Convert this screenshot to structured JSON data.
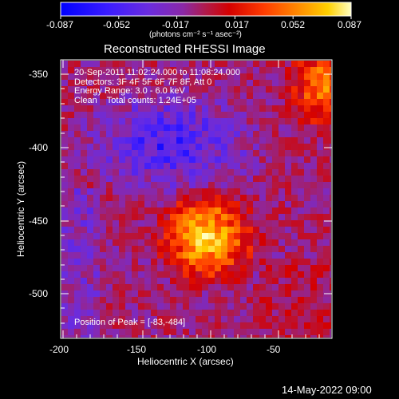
{
  "colorbar": {
    "ticks": [
      "-0.087",
      "-0.052",
      "-0.017",
      "0.017",
      "0.052",
      "0.087"
    ],
    "units": "(photons cm⁻² s⁻¹ asec⁻²)"
  },
  "title": "Reconstructed RHESSI Image",
  "overlay": {
    "line1": "20-Sep-2011 11:02:24.000 to 11:08:24.000",
    "line2": "Detectors: 3F 4F 5F 6F 7F 8F, Att 0",
    "line3": "Energy Range: 3.0 - 6.0 keV",
    "line4": "Clean    Total counts: 1.24E+05",
    "peak": "Position of Peak = [-83,-484]"
  },
  "axes": {
    "xlabel": "Heliocentric X (arcsec)",
    "ylabel": "Heliocentric Y (arcsec)",
    "xticks": [
      "-200",
      "-150",
      "-100",
      "-50"
    ],
    "yticks": [
      "-350",
      "-400",
      "-450",
      "-500"
    ]
  },
  "footer": {
    "date": "14-May-2022 09:00"
  },
  "image": {
    "x_range": [
      -210,
      -10
    ],
    "y_range": [
      -532,
      -341
    ],
    "peak_position": [
      -83,
      -484
    ]
  },
  "colors": {
    "background": "#000000",
    "colormap": [
      "#0000ff",
      "#3a1cff",
      "#6a2ce0",
      "#8a28a8",
      "#b01a4a",
      "#d40000",
      "#ff3c00",
      "#ff8c00",
      "#ffd000",
      "#ffffc0"
    ]
  }
}
